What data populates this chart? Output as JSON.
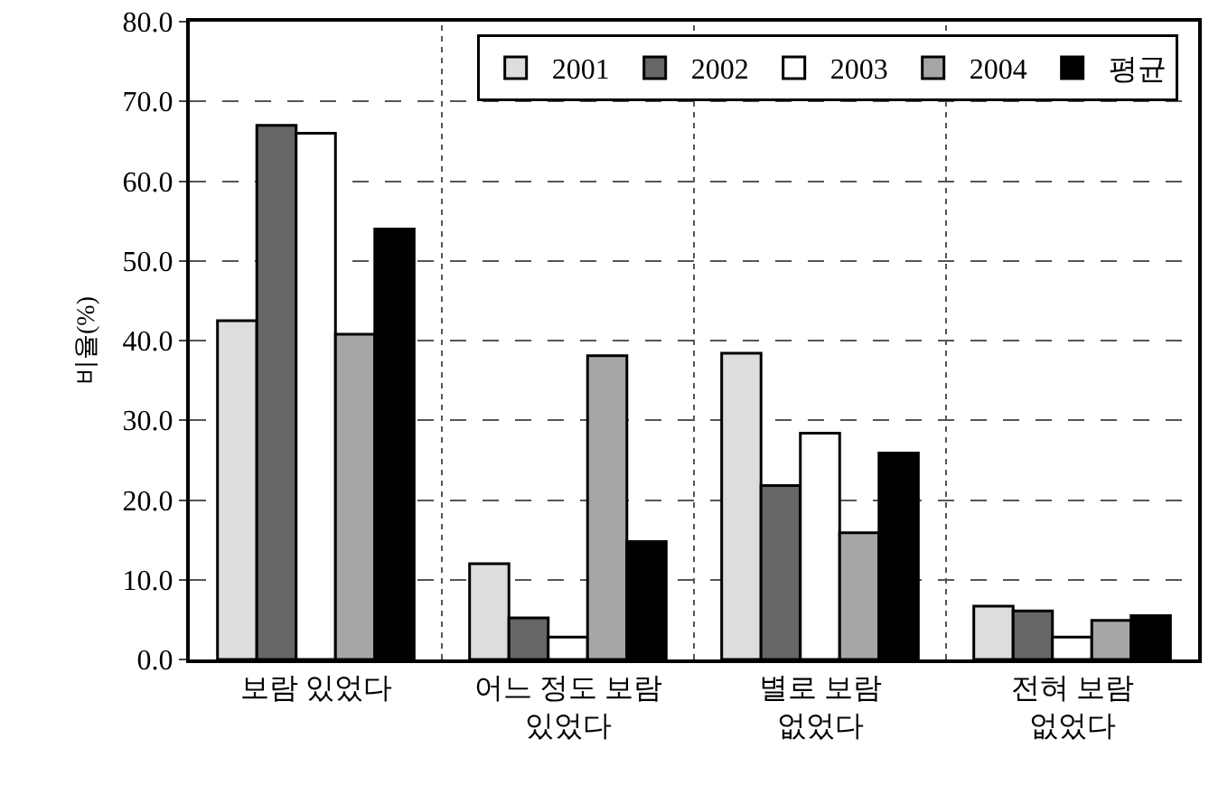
{
  "chart_data": {
    "type": "bar",
    "ylabel": "비율(%)",
    "categories": [
      "보람 있었다",
      "어느 정도 보람\n있었다",
      "별로 보람\n없었다",
      "전혀 보람\n없었다"
    ],
    "series": [
      {
        "name": "2001",
        "color": "#dddddd",
        "values": [
          42.5,
          12.0,
          38.4,
          6.7
        ]
      },
      {
        "name": "2002",
        "color": "#666666",
        "values": [
          67.0,
          5.2,
          21.8,
          6.1
        ]
      },
      {
        "name": "2003",
        "color": "#ffffff",
        "values": [
          66.0,
          2.8,
          28.4,
          2.8
        ]
      },
      {
        "name": "2004",
        "color": "#a6a6a6",
        "values": [
          40.8,
          38.1,
          15.9,
          4.9
        ]
      },
      {
        "name": "평균",
        "color": "#000000",
        "values": [
          54.0,
          14.8,
          25.9,
          5.5
        ]
      }
    ],
    "ylim": [
      0,
      80
    ],
    "yticks": [
      {
        "value": 0,
        "label": "0.0"
      },
      {
        "value": 10,
        "label": "10.0"
      },
      {
        "value": 20,
        "label": "20.0"
      },
      {
        "value": 30,
        "label": "30.0"
      },
      {
        "value": 40,
        "label": "40.0"
      },
      {
        "value": 50,
        "label": "50.0"
      },
      {
        "value": 60,
        "label": "60.0"
      },
      {
        "value": 70,
        "label": "70.0"
      },
      {
        "value": 80,
        "label": "80.0"
      }
    ],
    "grid": true,
    "legend": "top right"
  }
}
